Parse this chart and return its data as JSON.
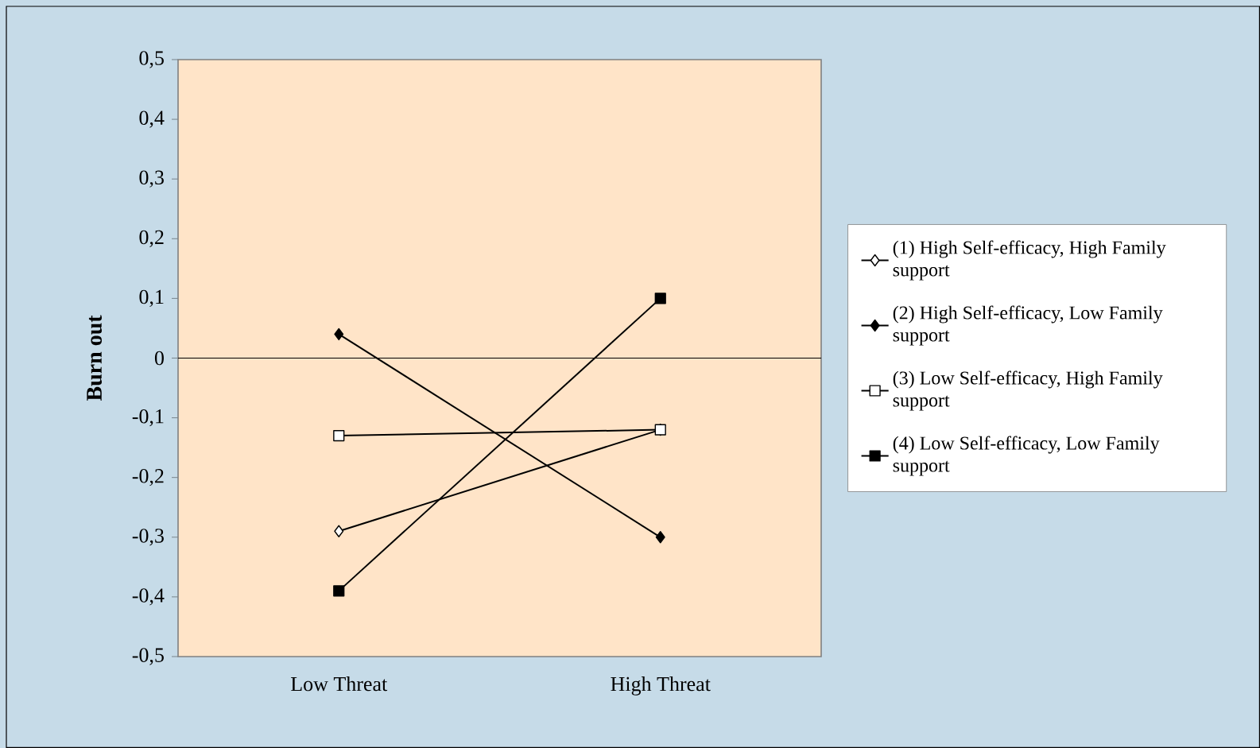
{
  "chart_data": {
    "type": "line",
    "ylabel": "Burn out",
    "categories": [
      "Low Threat",
      "High Threat"
    ],
    "series": [
      {
        "name": "(1) High Self-efficacy, High Family support",
        "color": "#000000",
        "marker": "diamond",
        "values": [
          -0.29,
          -0.12
        ]
      },
      {
        "name": "(2) High Self-efficacy, Low Family support",
        "color": "#000000",
        "marker": "diamond",
        "values": [
          0.04,
          -0.3
        ]
      },
      {
        "name": "(3) Low Self-efficacy, High Family support",
        "color": "#000000",
        "marker": "square",
        "values": [
          -0.13,
          -0.12
        ]
      },
      {
        "name": "(4) Low Self-efficacy, Low Family support",
        "color": "#000000",
        "marker": "square",
        "values": [
          -0.39,
          0.1
        ]
      }
    ],
    "ylim": [
      -0.5,
      0.5
    ],
    "yticks": [
      {
        "value": -0.5,
        "label": "-0,5"
      },
      {
        "value": -0.4,
        "label": "-0,4"
      },
      {
        "value": -0.3,
        "label": "-0,3"
      },
      {
        "value": -0.2,
        "label": "-0,2"
      },
      {
        "value": -0.1,
        "label": "-0,1"
      },
      0,
      {
        "value": 0.1,
        "label": "0,1"
      },
      {
        "value": 0.2,
        "label": "0,2"
      },
      {
        "value": 0.3,
        "label": "0,3"
      },
      {
        "value": 0.4,
        "label": "0,4"
      },
      {
        "value": 0.5,
        "label": "0,5"
      }
    ],
    "ref_lines": [
      {
        "axis": "y",
        "value": 0,
        "color": "#000000"
      }
    ],
    "legend": "right",
    "grid": false,
    "line_style": "solid"
  }
}
